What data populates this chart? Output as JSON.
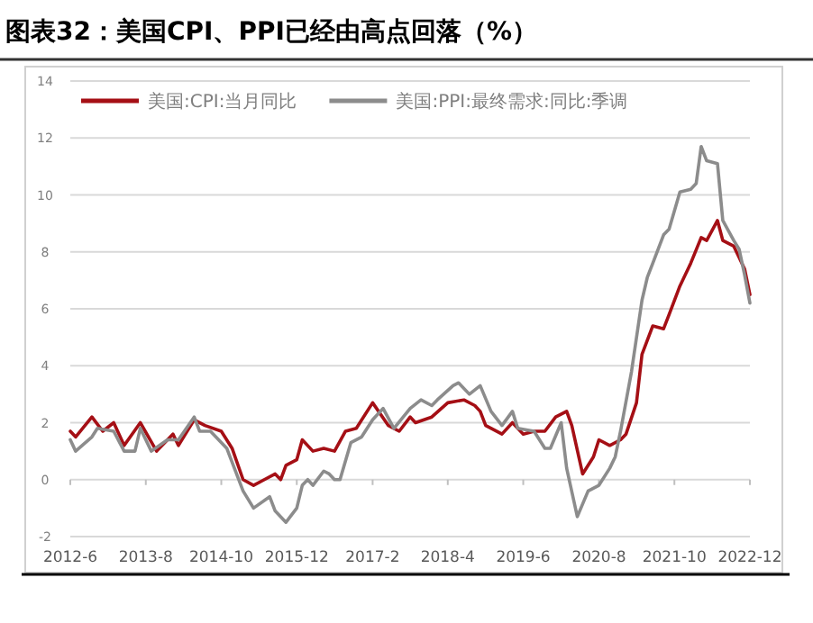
{
  "chart_data": {
    "type": "line",
    "title": "图表32：美国CPI、PPI已经由高点回落（%）",
    "xlim": [
      "2012-06",
      "2022-12"
    ],
    "xticks": [
      {
        "value": "2012-06",
        "label": "2012-6"
      },
      {
        "value": "2013-08",
        "label": "2013-8"
      },
      {
        "value": "2014-10",
        "label": "2014-10"
      },
      {
        "value": "2015-12",
        "label": "2015-12"
      },
      {
        "value": "2017-02",
        "label": "2017-2"
      },
      {
        "value": "2018-04",
        "label": "2018-4"
      },
      {
        "value": "2019-06",
        "label": "2019-6"
      },
      {
        "value": "2020-08",
        "label": "2020-8"
      },
      {
        "value": "2021-10",
        "label": "2021-10"
      },
      {
        "value": "2022-12",
        "label": "2022-12"
      }
    ],
    "ylim": [
      -2,
      14
    ],
    "yticks": [
      -2,
      0,
      2,
      4,
      6,
      8,
      10,
      12,
      14
    ],
    "grid": "y",
    "legend": "top",
    "marker": "none",
    "line_style": "solid",
    "series": [
      {
        "name": "美国:CPI:当月同比",
        "color": "#a50f15",
        "x": [
          "2012-06",
          "2012-07",
          "2012-10",
          "2012-12",
          "2013-02",
          "2013-04",
          "2013-07",
          "2013-10",
          "2014-01",
          "2014-02",
          "2014-05",
          "2014-07",
          "2014-10",
          "2014-12",
          "2015-02",
          "2015-04",
          "2015-06",
          "2015-08",
          "2015-09",
          "2015-10",
          "2015-12",
          "2016-01",
          "2016-03",
          "2016-05",
          "2016-07",
          "2016-09",
          "2016-11",
          "2017-02",
          "2017-05",
          "2017-07",
          "2017-09",
          "2017-10",
          "2018-01",
          "2018-04",
          "2018-07",
          "2018-09",
          "2018-10",
          "2018-11",
          "2019-02",
          "2019-04",
          "2019-06",
          "2019-08",
          "2019-10",
          "2019-12",
          "2020-02",
          "2020-03",
          "2020-05",
          "2020-07",
          "2020-08",
          "2020-10",
          "2020-12",
          "2021-01",
          "2021-03",
          "2021-04",
          "2021-06",
          "2021-08",
          "2021-09",
          "2021-11",
          "2022-01",
          "2022-03",
          "2022-04",
          "2022-06",
          "2022-07",
          "2022-09",
          "2022-11",
          "2022-12"
        ],
        "values": [
          1.7,
          1.5,
          2.2,
          1.7,
          2.0,
          1.2,
          2.0,
          1.0,
          1.6,
          1.2,
          2.1,
          1.9,
          1.7,
          1.1,
          0.0,
          -0.2,
          0.0,
          0.2,
          0.0,
          0.5,
          0.7,
          1.4,
          1.0,
          1.1,
          1.0,
          1.7,
          1.8,
          2.7,
          1.9,
          1.7,
          2.2,
          2.0,
          2.2,
          2.7,
          2.8,
          2.6,
          2.4,
          1.9,
          1.6,
          2.0,
          1.6,
          1.7,
          1.7,
          2.2,
          2.4,
          1.9,
          0.2,
          0.8,
          1.4,
          1.2,
          1.4,
          1.6,
          2.7,
          4.4,
          5.4,
          5.3,
          5.8,
          6.8,
          7.6,
          8.5,
          8.4,
          9.1,
          8.4,
          8.2,
          7.4,
          6.5
        ]
      },
      {
        "name": "美国:PPI:最终需求:同比:季调",
        "color": "#8c8c8c",
        "x": [
          "2012-06",
          "2012-07",
          "2012-10",
          "2012-11",
          "2013-02",
          "2013-04",
          "2013-06",
          "2013-07",
          "2013-09",
          "2013-12",
          "2014-02",
          "2014-05",
          "2014-06",
          "2014-08",
          "2014-11",
          "2015-02",
          "2015-04",
          "2015-07",
          "2015-08",
          "2015-10",
          "2015-12",
          "2016-01",
          "2016-02",
          "2016-03",
          "2016-05",
          "2016-06",
          "2016-07",
          "2016-08",
          "2016-10",
          "2016-12",
          "2017-02",
          "2017-04",
          "2017-06",
          "2017-09",
          "2017-11",
          "2018-01",
          "2018-02",
          "2018-05",
          "2018-06",
          "2018-08",
          "2018-10",
          "2018-12",
          "2019-02",
          "2019-04",
          "2019-05",
          "2019-08",
          "2019-10",
          "2019-11",
          "2020-01",
          "2020-02",
          "2020-04",
          "2020-06",
          "2020-08",
          "2020-10",
          "2020-11",
          "2020-12",
          "2021-02",
          "2021-04",
          "2021-05",
          "2021-06",
          "2021-08",
          "2021-09",
          "2021-11",
          "2022-01",
          "2022-02",
          "2022-03",
          "2022-04",
          "2022-06",
          "2022-07",
          "2022-09",
          "2022-10",
          "2022-11",
          "2022-12"
        ],
        "values": [
          1.4,
          1.0,
          1.5,
          1.8,
          1.7,
          1.0,
          1.0,
          1.8,
          1.0,
          1.4,
          1.4,
          2.2,
          1.7,
          1.7,
          1.1,
          -0.4,
          -1.0,
          -0.6,
          -1.1,
          -1.5,
          -1.0,
          -0.2,
          0.0,
          -0.2,
          0.3,
          0.2,
          0.0,
          0.0,
          1.3,
          1.5,
          2.1,
          2.5,
          1.8,
          2.5,
          2.8,
          2.6,
          2.8,
          3.3,
          3.4,
          3.0,
          3.3,
          2.4,
          1.9,
          2.4,
          1.8,
          1.7,
          1.1,
          1.1,
          2.0,
          0.4,
          -1.3,
          -0.4,
          -0.2,
          0.4,
          0.8,
          1.7,
          3.8,
          6.3,
          7.1,
          7.6,
          8.6,
          8.8,
          10.1,
          10.2,
          10.4,
          11.7,
          11.2,
          11.1,
          9.1,
          8.4,
          8.1,
          7.2,
          6.2
        ]
      }
    ]
  }
}
